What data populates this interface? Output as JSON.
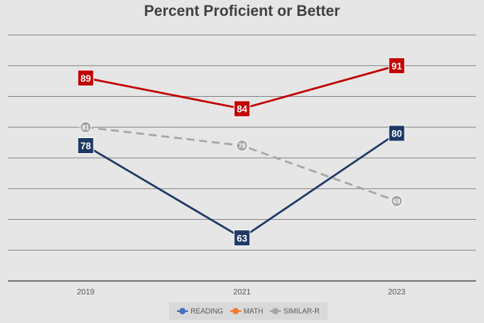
{
  "chart_data": {
    "type": "line",
    "title": "Percent Proficient or Better",
    "categories": [
      "2019",
      "2021",
      "2023"
    ],
    "ylim": [
      56,
      96
    ],
    "grid": true,
    "legend_position": "bottom",
    "xlabel": "",
    "ylabel": "",
    "series": [
      {
        "name": "READING",
        "values": [
          78,
          63,
          80
        ],
        "color": "#1f3864",
        "marker_color": "#1f3864",
        "dashed": false,
        "marker": "square",
        "label_size": "large"
      },
      {
        "name": "MATH",
        "values": [
          89,
          84,
          91
        ],
        "color": "#c00000",
        "marker_color": "#c00000",
        "dashed": false,
        "marker": "square",
        "label_size": "large"
      },
      {
        "name": "SIMILAR-R",
        "values": [
          81,
          78,
          69
        ],
        "color": "#a6a6a6",
        "marker_color": "#a6a6a6",
        "dashed": true,
        "marker": "circle",
        "label_size": "small"
      }
    ],
    "legend_swatch_colors": [
      "#4472c4",
      "#ed7d31",
      "#a5a5a5"
    ]
  }
}
